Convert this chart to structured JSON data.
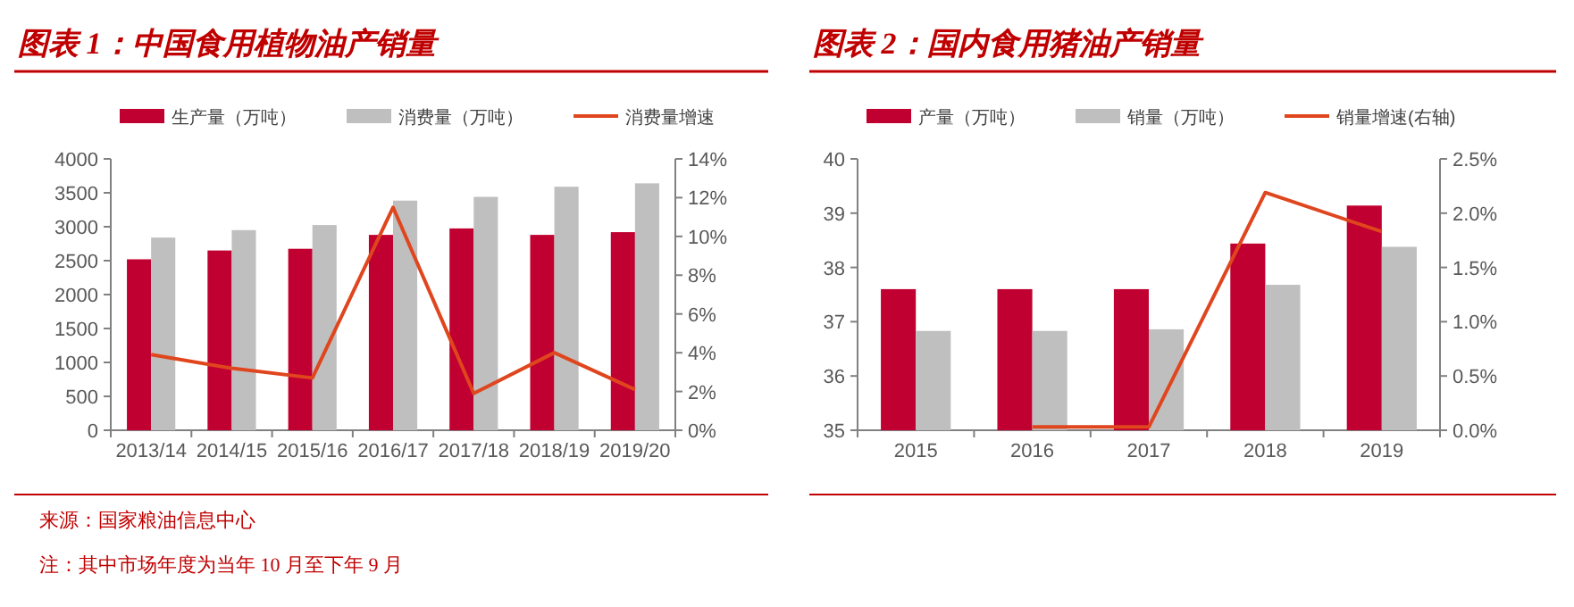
{
  "chart_data": [
    {
      "type": "bar",
      "title": "图表 1：中国食用植物油产销量",
      "categories": [
        "2013/14",
        "2014/15",
        "2015/16",
        "2016/17",
        "2017/18",
        "2018/19",
        "2019/20"
      ],
      "series": [
        {
          "name": "生产量（万吨）",
          "color": "#c00030",
          "values": [
            2520,
            2650,
            2675,
            2880,
            2975,
            2880,
            2920
          ]
        },
        {
          "name": "消费量（万吨）",
          "color": "#bfbfbf",
          "values": [
            2840,
            2950,
            3025,
            3385,
            3440,
            3590,
            3640
          ]
        },
        {
          "name": "消费量增速",
          "type": "line",
          "axis": "y2",
          "color": "#e0461e",
          "values": [
            3.9,
            3.2,
            2.7,
            11.5,
            1.9,
            4.0,
            2.1
          ]
        }
      ],
      "ylim": [
        0,
        4000
      ],
      "yticks": [
        0,
        500,
        1000,
        1500,
        2000,
        2500,
        3000,
        3500,
        4000
      ],
      "y2lim": [
        0,
        14
      ],
      "y2ticks": [
        {
          "value": 0,
          "label": "0%"
        },
        {
          "value": 2,
          "label": "2%"
        },
        {
          "value": 4,
          "label": "4%"
        },
        {
          "value": 6,
          "label": "6%"
        },
        {
          "value": 8,
          "label": "8%"
        },
        {
          "value": 10,
          "label": "10%"
        },
        {
          "value": 12,
          "label": "12%"
        },
        {
          "value": 14,
          "label": "14%"
        }
      ],
      "legend": "top",
      "grid": false,
      "annotations": [
        "来源：国家粮油信息中心",
        "注：其中市场年度为当年 10 月至下年 9 月"
      ]
    },
    {
      "type": "bar",
      "title": "图表 2：国内食用猪油产销量",
      "categories": [
        "2015",
        "2016",
        "2017",
        "2018",
        "2019"
      ],
      "series": [
        {
          "name": "产量（万吨）",
          "color": "#c00030",
          "values": [
            37.6,
            37.6,
            37.6,
            38.44,
            39.14
          ]
        },
        {
          "name": "销量（万吨）",
          "color": "#bfbfbf",
          "values": [
            36.83,
            36.83,
            36.86,
            37.68,
            38.38
          ]
        },
        {
          "name": "销量增速(右轴)",
          "type": "line",
          "axis": "y2",
          "color": "#e0461e",
          "values": [
            null,
            0.03,
            0.03,
            2.19,
            1.83
          ]
        }
      ],
      "ylim": [
        35,
        40
      ],
      "yticks": [
        35,
        36,
        37,
        38,
        39,
        40
      ],
      "y2lim": [
        0,
        2.5
      ],
      "y2ticks": [
        {
          "value": 0,
          "label": "0.0%"
        },
        {
          "value": 0.5,
          "label": "0.5%"
        },
        {
          "value": 1,
          "label": "1.0%"
        },
        {
          "value": 1.5,
          "label": "1.5%"
        },
        {
          "value": 2,
          "label": "2.0%"
        },
        {
          "value": 2.5,
          "label": "2.5%"
        }
      ],
      "legend": "top",
      "grid": false
    }
  ]
}
